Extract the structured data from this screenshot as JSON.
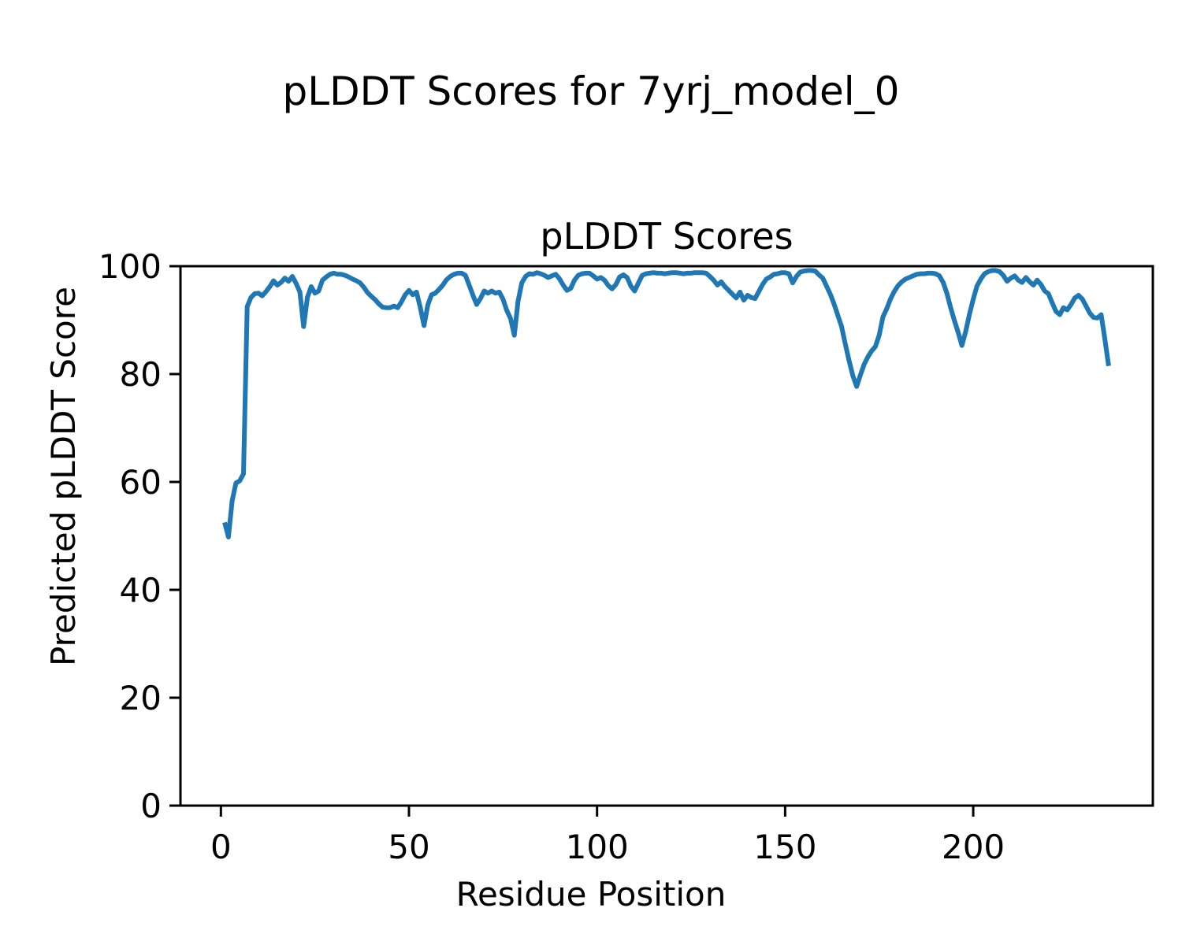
{
  "figure": {
    "suptitle": "pLDDT Scores for 7yrj_model_0",
    "background": "#ffffff"
  },
  "chart_data": {
    "type": "line",
    "title": "pLDDT Scores",
    "xlabel": "Residue Position",
    "ylabel": "Predicted pLDDT Score",
    "xlim": [
      -10.75,
      247.75
    ],
    "ylim": [
      0,
      100
    ],
    "xticks": [
      0,
      50,
      100,
      150,
      200
    ],
    "yticks": [
      0,
      20,
      40,
      60,
      80,
      100
    ],
    "grid": false,
    "legend": "none",
    "line_color": "#1f77b4",
    "axis_color": "#000000",
    "series": [
      {
        "name": "pLDDT",
        "x": [
          1,
          2,
          3,
          4,
          5,
          6,
          7,
          8,
          9,
          10,
          11,
          12,
          13,
          14,
          15,
          16,
          17,
          18,
          19,
          20,
          21,
          22,
          23,
          24,
          25,
          26,
          27,
          28,
          29,
          30,
          31,
          32,
          33,
          34,
          35,
          36,
          37,
          38,
          39,
          40,
          41,
          42,
          43,
          44,
          45,
          46,
          47,
          48,
          49,
          50,
          51,
          52,
          53,
          54,
          55,
          56,
          57,
          58,
          59,
          60,
          61,
          62,
          63,
          64,
          65,
          66,
          67,
          68,
          69,
          70,
          71,
          72,
          73,
          74,
          75,
          76,
          77,
          78,
          79,
          80,
          81,
          82,
          83,
          84,
          85,
          86,
          87,
          88,
          89,
          90,
          91,
          92,
          93,
          94,
          95,
          96,
          97,
          98,
          99,
          100,
          101,
          102,
          103,
          104,
          105,
          106,
          107,
          108,
          109,
          110,
          111,
          112,
          113,
          114,
          115,
          116,
          117,
          118,
          119,
          120,
          121,
          122,
          123,
          124,
          125,
          126,
          127,
          128,
          129,
          130,
          131,
          132,
          133,
          134,
          135,
          136,
          137,
          138,
          139,
          140,
          141,
          142,
          143,
          144,
          145,
          146,
          147,
          148,
          149,
          150,
          151,
          152,
          153,
          154,
          155,
          156,
          157,
          158,
          159,
          160,
          161,
          162,
          163,
          164,
          165,
          166,
          167,
          168,
          169,
          170,
          171,
          172,
          173,
          174,
          175,
          176,
          177,
          178,
          179,
          180,
          181,
          182,
          183,
          184,
          185,
          186,
          187,
          188,
          189,
          190,
          191,
          192,
          193,
          194,
          195,
          196,
          197,
          198,
          199,
          200,
          201,
          202,
          203,
          204,
          205,
          206,
          207,
          208,
          209,
          210,
          211,
          212,
          213,
          214,
          215,
          216,
          217,
          218,
          219,
          220,
          221,
          222,
          223,
          224,
          225,
          226,
          227,
          228,
          229,
          230,
          231,
          232,
          233,
          234,
          235,
          236
        ],
        "y": [
          52.5,
          49.8,
          56.5,
          59.8,
          60.2,
          61.5,
          92.5,
          94.2,
          94.9,
          95.0,
          94.5,
          95.3,
          96.2,
          97.3,
          96.5,
          97.0,
          97.8,
          97.2,
          98.1,
          96.8,
          95.2,
          88.8,
          94.2,
          96.2,
          95.0,
          95.4,
          97.4,
          98.0,
          98.5,
          98.7,
          98.5,
          98.5,
          98.3,
          98.0,
          97.6,
          97.3,
          96.9,
          96.1,
          95.1,
          94.4,
          93.8,
          93.0,
          92.4,
          92.3,
          92.3,
          92.6,
          92.3,
          93.4,
          94.7,
          95.5,
          94.7,
          95.2,
          92.4,
          89.0,
          92.8,
          94.7,
          95.0,
          95.7,
          96.5,
          97.5,
          98.1,
          98.5,
          98.7,
          98.7,
          98.3,
          96.5,
          94.6,
          92.9,
          94.0,
          95.4,
          95.0,
          95.4,
          95.0,
          95.2,
          93.9,
          91.8,
          90.3,
          87.2,
          93.5,
          96.9,
          98.1,
          98.6,
          98.5,
          98.8,
          98.6,
          98.3,
          97.9,
          98.2,
          98.5,
          97.7,
          96.5,
          95.5,
          95.9,
          97.4,
          98.3,
          98.6,
          98.7,
          98.7,
          98.2,
          97.6,
          97.9,
          97.4,
          96.4,
          95.8,
          96.6,
          98.0,
          98.4,
          97.9,
          96.3,
          95.4,
          96.9,
          98.3,
          98.6,
          98.7,
          98.8,
          98.7,
          98.7,
          98.6,
          98.7,
          98.8,
          98.8,
          98.7,
          98.6,
          98.7,
          98.7,
          98.8,
          98.8,
          98.8,
          98.7,
          98.1,
          97.4,
          96.5,
          97.1,
          96.2,
          95.5,
          94.8,
          94.1,
          95.2,
          93.7,
          94.6,
          94.2,
          94.0,
          95.3,
          96.6,
          97.6,
          98.0,
          98.5,
          98.6,
          98.8,
          98.8,
          98.6,
          96.9,
          98.1,
          98.9,
          99.1,
          99.2,
          99.2,
          99.1,
          98.4,
          97.8,
          96.3,
          94.8,
          93.0,
          90.9,
          88.8,
          85.5,
          82.5,
          79.7,
          77.7,
          79.8,
          81.8,
          83.2,
          84.3,
          85.1,
          87.2,
          90.6,
          92.1,
          93.9,
          95.3,
          96.4,
          97.1,
          97.6,
          97.9,
          98.2,
          98.5,
          98.6,
          98.6,
          98.7,
          98.7,
          98.6,
          98.2,
          97.0,
          95.0,
          92.3,
          89.9,
          87.7,
          85.3,
          87.9,
          91.1,
          93.9,
          96.3,
          97.6,
          98.6,
          99.0,
          99.2,
          99.2,
          99.0,
          98.3,
          97.2,
          97.8,
          98.2,
          97.4,
          97.0,
          97.9,
          97.1,
          96.5,
          97.4,
          96.6,
          95.4,
          94.9,
          93.2,
          91.6,
          91.0,
          92.3,
          91.9,
          92.9,
          94.1,
          94.6,
          93.9,
          92.6,
          91.3,
          90.5,
          90.4,
          91.0,
          86.5,
          81.5
        ]
      }
    ]
  }
}
